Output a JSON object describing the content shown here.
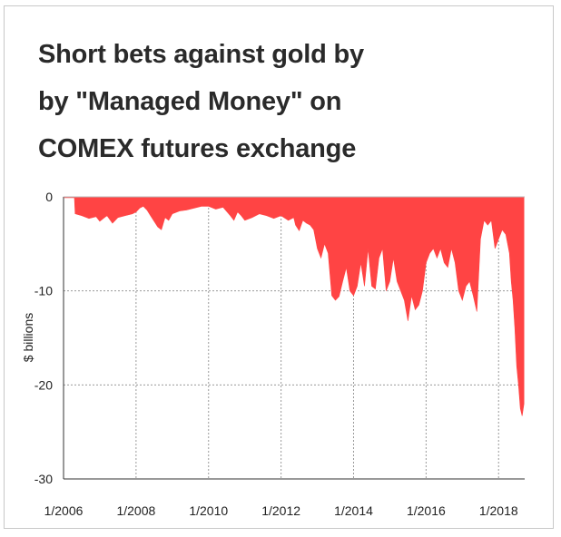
{
  "title_lines": [
    "Short bets against gold by",
    "by \"Managed Money\" on",
    "COMEX futures exchange"
  ],
  "colors": {
    "fill": "#ff4444",
    "grid": "#9a9a9a",
    "axis": "#333333",
    "text": "#222222"
  },
  "chart_data": {
    "type": "area",
    "title": "Short bets against gold by by \"Managed Money\" on COMEX futures exchange",
    "xlabel": "",
    "ylabel": "$ billions",
    "xlim": [
      2006.0,
      2018.72
    ],
    "ylim": [
      -30,
      0
    ],
    "grid": true,
    "x_ticks": [
      2006,
      2008,
      2010,
      2012,
      2014,
      2016,
      2018
    ],
    "x_tick_labels": [
      "1/2006",
      "1/2008",
      "1/2010",
      "1/2012",
      "1/2014",
      "1/2016",
      "1/2018"
    ],
    "y_ticks": [
      0,
      -10,
      -20,
      -30
    ],
    "y_tick_labels": [
      "0",
      "-10",
      "-20",
      "-30"
    ],
    "series": [
      {
        "x": [
          2006.0,
          2006.3,
          2006.32,
          2006.5,
          2006.7,
          2006.9,
          2007.0,
          2007.1,
          2007.2,
          2007.35,
          2007.5,
          2007.7,
          2007.9,
          2008.0,
          2008.1,
          2008.2,
          2008.3,
          2008.4,
          2008.5,
          2008.6,
          2008.7,
          2008.8,
          2008.9,
          2009.0,
          2009.2,
          2009.4,
          2009.6,
          2009.8,
          2010.0,
          2010.2,
          2010.4,
          2010.6,
          2010.7,
          2010.8,
          2010.9,
          2011.0,
          2011.2,
          2011.4,
          2011.6,
          2011.8,
          2012.0,
          2012.2,
          2012.35,
          2012.4,
          2012.5,
          2012.6,
          2012.7,
          2012.8,
          2012.9,
          2013.0,
          2013.1,
          2013.2,
          2013.3,
          2013.4,
          2013.5,
          2013.6,
          2013.7,
          2013.8,
          2013.9,
          2014.0,
          2014.1,
          2014.2,
          2014.3,
          2014.4,
          2014.5,
          2014.6,
          2014.7,
          2014.8,
          2014.9,
          2015.0,
          2015.1,
          2015.2,
          2015.3,
          2015.4,
          2015.5,
          2015.6,
          2015.7,
          2015.8,
          2015.9,
          2016.0,
          2016.1,
          2016.2,
          2016.3,
          2016.4,
          2016.5,
          2016.6,
          2016.7,
          2016.8,
          2016.9,
          2017.0,
          2017.1,
          2017.2,
          2017.3,
          2017.4,
          2017.5,
          2017.6,
          2017.7,
          2017.8,
          2017.9,
          2018.0,
          2018.1,
          2018.2,
          2018.3,
          2018.35,
          2018.4,
          2018.45,
          2018.5,
          2018.55,
          2018.6,
          2018.65,
          2018.7
        ],
        "values": [
          -0.1,
          -0.1,
          -1.8,
          -2.0,
          -2.3,
          -2.1,
          -2.6,
          -2.3,
          -2.0,
          -2.8,
          -2.2,
          -2.0,
          -1.8,
          -1.6,
          -1.2,
          -1.0,
          -1.4,
          -2.0,
          -2.6,
          -3.2,
          -3.5,
          -2.2,
          -2.5,
          -1.8,
          -1.5,
          -1.4,
          -1.2,
          -1.0,
          -1.0,
          -1.3,
          -1.1,
          -2.0,
          -2.5,
          -1.6,
          -2.0,
          -2.5,
          -2.2,
          -1.8,
          -2.0,
          -2.3,
          -2.0,
          -2.5,
          -2.2,
          -3.0,
          -3.6,
          -2.5,
          -2.8,
          -3.0,
          -3.5,
          -5.5,
          -6.5,
          -5.0,
          -6.0,
          -10.5,
          -11.0,
          -10.6,
          -9.0,
          -7.5,
          -10.0,
          -10.5,
          -9.5,
          -7.0,
          -9.5,
          -5.5,
          -9.5,
          -9.8,
          -6.5,
          -5.5,
          -10.0,
          -9.0,
          -6.5,
          -9.0,
          -10.0,
          -11.0,
          -13.2,
          -10.5,
          -12.0,
          -11.5,
          -10.0,
          -7.0,
          -6.0,
          -5.5,
          -6.5,
          -5.5,
          -7.0,
          -7.5,
          -5.5,
          -7.0,
          -10.0,
          -11.0,
          -9.5,
          -9.0,
          -10.5,
          -12.2,
          -4.5,
          -2.5,
          -3.0,
          -2.5,
          -5.5,
          -4.5,
          -3.5,
          -4.0,
          -6.0,
          -9.0,
          -11.0,
          -14.0,
          -18.0,
          -20.0,
          -22.5,
          -23.3,
          -22.0
        ]
      }
    ]
  }
}
